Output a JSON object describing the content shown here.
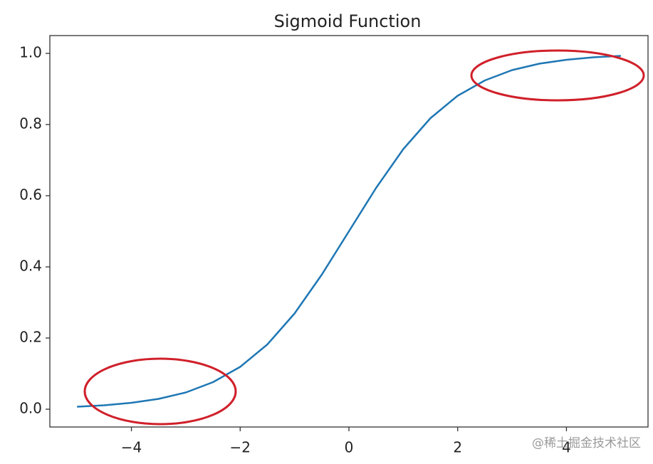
{
  "chart_data": {
    "type": "line",
    "title": "Sigmoid Function",
    "x": [
      -5,
      -4.5,
      -4,
      -3.5,
      -3,
      -2.5,
      -2,
      -1.5,
      -1,
      -0.5,
      0,
      0.5,
      1,
      1.5,
      2,
      2.5,
      3,
      3.5,
      4,
      4.5,
      5
    ],
    "series": [
      {
        "color": "#1f77b4",
        "values": [
          0.007,
          0.011,
          0.018,
          0.029,
          0.047,
          0.076,
          0.119,
          0.182,
          0.269,
          0.378,
          0.5,
          0.622,
          0.731,
          0.818,
          0.881,
          0.924,
          0.953,
          0.971,
          0.982,
          0.989,
          0.993
        ]
      }
    ],
    "xlim": [
      -5.5,
      5.5
    ],
    "xticks": [
      {
        "value": -4,
        "label": "−4"
      },
      {
        "value": -2,
        "label": "−2"
      },
      0,
      2,
      4
    ],
    "ylim": [
      -0.05,
      1.05
    ],
    "yticks": [
      {
        "value": 0,
        "label": "0.0"
      },
      0.2,
      0.4,
      0.6,
      0.8,
      {
        "value": 1,
        "label": "1.0"
      }
    ],
    "grid": false,
    "watermark": "@稀土掘金技术社区"
  }
}
